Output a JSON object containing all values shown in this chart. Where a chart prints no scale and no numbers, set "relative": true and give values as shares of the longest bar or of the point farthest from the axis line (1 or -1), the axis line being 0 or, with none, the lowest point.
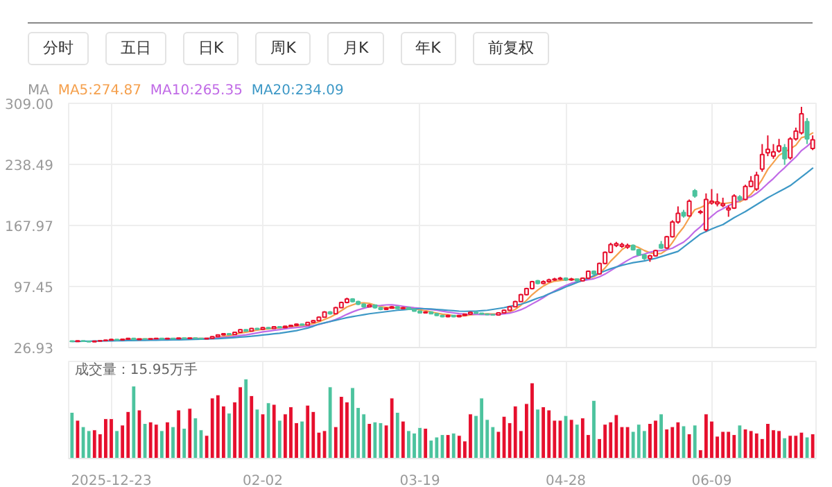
{
  "chart_data": [
    {
      "type": "other",
      "annotations": [
        "分时",
        "五日",
        "日K",
        "周K",
        "月K",
        "年K",
        "前复权"
      ]
    },
    {
      "type": "candlestick",
      "legend_title": "MA",
      "legend": "top left",
      "grid": true,
      "tick_labels": "y",
      "ylim": [
        26.93,
        309.0
      ],
      "yticks": [
        26.93,
        97.45,
        167.97,
        238.49,
        {
          "value": 309.0,
          "label": "309.00"
        }
      ],
      "categories": [
        null,
        null,
        null,
        null,
        null,
        null,
        null,
        null,
        null,
        null,
        null,
        null,
        null,
        null,
        null,
        null,
        null,
        null,
        null,
        null,
        null,
        null,
        null,
        null,
        null,
        null,
        null,
        null,
        null,
        null,
        null,
        null,
        null,
        null,
        null,
        null,
        null,
        null,
        null,
        null,
        null,
        null,
        null,
        null,
        null,
        null,
        null,
        null,
        null,
        null,
        null,
        null,
        null,
        null,
        null,
        null,
        null,
        null,
        null,
        null,
        null,
        null,
        null,
        null,
        null,
        null,
        null,
        null,
        null,
        null,
        null,
        null,
        null,
        null,
        null,
        null,
        null,
        null,
        null,
        null,
        null,
        null,
        null,
        null,
        null,
        null,
        null,
        null,
        null,
        null,
        null,
        null,
        null,
        null,
        null,
        null,
        null,
        null,
        null,
        null,
        null,
        null,
        null,
        null,
        null,
        null,
        null,
        null,
        null,
        null,
        null,
        null,
        null,
        null,
        null,
        null,
        null,
        null,
        null,
        null,
        null,
        null,
        null,
        null,
        null,
        null,
        null,
        null,
        null,
        null,
        null,
        null,
        null
      ],
      "ohlc": [
        [
          34.6,
          34.9,
          33.8,
          34.0
        ],
        [
          34.0,
          35.1,
          33.9,
          34.8
        ],
        [
          34.8,
          35.0,
          34.0,
          34.2
        ],
        [
          34.2,
          34.4,
          33.3,
          33.6
        ],
        [
          33.6,
          34.5,
          33.4,
          34.3
        ],
        [
          34.3,
          35.2,
          34.1,
          34.9
        ],
        [
          34.9,
          35.9,
          34.7,
          35.6
        ],
        [
          35.6,
          36.8,
          35.4,
          36.4
        ],
        [
          36.4,
          36.6,
          35.5,
          35.8
        ],
        [
          35.8,
          36.8,
          35.6,
          36.5
        ],
        [
          36.5,
          38.0,
          36.3,
          37.6
        ],
        [
          37.6,
          37.9,
          35.9,
          36.2
        ],
        [
          36.2,
          37.3,
          36.0,
          37.0
        ],
        [
          37.0,
          37.2,
          36.2,
          36.5
        ],
        [
          36.5,
          37.4,
          36.3,
          37.1
        ],
        [
          37.1,
          37.9,
          36.9,
          37.6
        ],
        [
          37.6,
          37.8,
          36.8,
          37.0
        ],
        [
          37.0,
          37.9,
          36.8,
          37.6
        ],
        [
          37.6,
          37.8,
          36.9,
          37.1
        ],
        [
          37.1,
          38.2,
          36.9,
          37.9
        ],
        [
          37.9,
          38.1,
          37.0,
          37.3
        ],
        [
          37.3,
          38.3,
          37.1,
          38.0
        ],
        [
          38.0,
          38.2,
          37.2,
          37.5
        ],
        [
          37.5,
          37.7,
          36.7,
          37.0
        ],
        [
          37.0,
          37.8,
          36.8,
          37.5
        ],
        [
          37.5,
          40.0,
          37.3,
          39.5
        ],
        [
          39.5,
          42.0,
          39.2,
          41.5
        ],
        [
          41.5,
          43.6,
          41.2,
          43.0
        ],
        [
          43.0,
          43.5,
          41.6,
          42.0
        ],
        [
          42.0,
          45.0,
          41.8,
          44.5
        ],
        [
          44.5,
          48.2,
          44.2,
          47.5
        ],
        [
          47.5,
          48.0,
          45.5,
          46.0
        ],
        [
          46.0,
          49.5,
          45.8,
          49.0
        ],
        [
          49.0,
          49.6,
          47.6,
          48.0
        ],
        [
          48.0,
          50.6,
          47.8,
          50.0
        ],
        [
          50.0,
          50.5,
          48.5,
          49.0
        ],
        [
          49.0,
          51.6,
          48.8,
          51.0
        ],
        [
          51.0,
          51.5,
          49.5,
          50.0
        ],
        [
          50.0,
          52.0,
          49.8,
          51.5
        ],
        [
          51.5,
          53.0,
          51.2,
          52.5
        ],
        [
          52.5,
          54.6,
          52.2,
          54.0
        ],
        [
          54.0,
          54.5,
          52.5,
          53.0
        ],
        [
          53.0,
          56.6,
          52.8,
          56.0
        ],
        [
          56.0,
          58.8,
          55.6,
          58.0
        ],
        [
          58.0,
          62.8,
          57.6,
          62.0
        ],
        [
          62.0,
          68.9,
          61.5,
          68.0
        ],
        [
          68.0,
          69.0,
          65.0,
          66.0
        ],
        [
          66.0,
          74.0,
          65.5,
          73.0
        ],
        [
          73.0,
          80.0,
          72.5,
          79.0
        ],
        [
          79.0,
          84.5,
          78.0,
          83.0
        ],
        [
          83.0,
          84.0,
          79.0,
          80.0
        ],
        [
          80.0,
          81.0,
          76.0,
          77.0
        ],
        [
          77.0,
          78.0,
          73.0,
          74.0
        ],
        [
          74.0,
          77.0,
          73.5,
          76.0
        ],
        [
          76.0,
          76.5,
          72.0,
          73.0
        ],
        [
          73.0,
          73.5,
          70.0,
          71.0
        ],
        [
          71.0,
          73.5,
          70.5,
          72.5
        ],
        [
          72.5,
          75.0,
          72.0,
          74.0
        ],
        [
          74.0,
          74.5,
          71.5,
          72.0
        ],
        [
          72.0,
          74.0,
          71.5,
          73.0
        ],
        [
          73.0,
          73.5,
          70.5,
          71.0
        ],
        [
          71.0,
          71.5,
          68.5,
          69.0
        ],
        [
          69.0,
          69.5,
          66.5,
          67.0
        ],
        [
          67.0,
          68.8,
          66.5,
          68.0
        ],
        [
          68.0,
          68.5,
          65.5,
          66.0
        ],
        [
          66.0,
          66.5,
          63.5,
          64.0
        ],
        [
          64.0,
          64.5,
          62.0,
          62.5
        ],
        [
          62.5,
          64.8,
          62.0,
          64.0
        ],
        [
          64.0,
          64.5,
          62.0,
          62.5
        ],
        [
          62.5,
          64.6,
          62.0,
          64.0
        ],
        [
          64.0,
          66.2,
          63.6,
          65.5
        ],
        [
          65.5,
          68.3,
          65.0,
          67.5
        ],
        [
          67.5,
          68.0,
          66.0,
          66.5
        ],
        [
          66.5,
          67.0,
          65.0,
          65.5
        ],
        [
          65.5,
          66.0,
          64.5,
          65.0
        ],
        [
          65.0,
          65.5,
          64.0,
          64.5
        ],
        [
          64.5,
          67.5,
          64.0,
          67.0
        ],
        [
          67.0,
          70.8,
          66.5,
          70.0
        ],
        [
          70.0,
          74.8,
          69.5,
          74.0
        ],
        [
          74.0,
          81.0,
          73.5,
          80.0
        ],
        [
          80.0,
          89.0,
          79.5,
          88.0
        ],
        [
          88.0,
          96.0,
          87.0,
          95.0
        ],
        [
          95.0,
          104.0,
          94.0,
          103.0
        ],
        [
          104.0,
          105.0,
          100.0,
          101.0
        ],
        [
          101.0,
          104.5,
          100.0,
          103.0
        ],
        [
          103.0,
          106.5,
          102.0,
          105.0
        ],
        [
          105.0,
          107.5,
          104.0,
          106.0
        ],
        [
          106.0,
          108.5,
          105.0,
          107.0
        ],
        [
          107.0,
          108.0,
          104.0,
          105.0
        ],
        [
          105.0,
          107.5,
          104.0,
          106.0
        ],
        [
          106.0,
          106.5,
          103.0,
          104.0
        ],
        [
          104.0,
          108.0,
          103.5,
          107.0
        ],
        [
          107.0,
          116.0,
          106.0,
          115.0
        ],
        [
          115.0,
          116.0,
          111.0,
          112.0
        ],
        [
          112.0,
          125.0,
          111.0,
          124.0
        ],
        [
          124.0,
          138.0,
          123.0,
          137.0
        ],
        [
          137.0,
          148.0,
          136.0,
          146.0
        ],
        [
          145.0,
          149.0,
          143.0,
          147.0
        ],
        [
          144.0,
          148.0,
          142.0,
          146.0
        ],
        [
          143.0,
          147.0,
          141.0,
          145.0
        ],
        [
          145.0,
          146.0,
          139.0,
          140.0
        ],
        [
          140.0,
          141.0,
          133.0,
          134.0
        ],
        [
          134.0,
          135.0,
          128.0,
          130.0
        ],
        [
          130.0,
          134.0,
          126.0,
          133.0
        ],
        [
          133.0,
          140.0,
          132.0,
          139.0
        ],
        [
          146.0,
          150.0,
          141.0,
          142.0
        ],
        [
          142.0,
          156.0,
          141.0,
          155.0
        ],
        [
          155.0,
          174.0,
          154.0,
          172.0
        ],
        [
          172.0,
          190.0,
          170.0,
          182.0
        ],
        [
          183.0,
          186.0,
          177.0,
          179.0
        ],
        [
          179.0,
          198.0,
          178.0,
          196.0
        ],
        [
          208.0,
          210.0,
          200.0,
          202.0
        ],
        [
          183.0,
          186.0,
          181.0,
          184.0
        ],
        [
          163.0,
          205.0,
          161.0,
          198.0
        ],
        [
          194.0,
          210.0,
          192.0,
          196.0
        ],
        [
          193.0,
          205.0,
          190.0,
          195.0
        ],
        [
          191.0,
          200.0,
          189.0,
          193.0
        ],
        [
          186.0,
          191.0,
          178.0,
          188.0
        ],
        [
          188.0,
          204.0,
          187.0,
          202.0
        ],
        [
          201.0,
          203.0,
          196.0,
          198.0
        ],
        [
          198.0,
          215.0,
          197.0,
          213.0
        ],
        [
          213.0,
          225.0,
          212.0,
          219.0
        ],
        [
          210.0,
          230.0,
          208.0,
          226.0
        ],
        [
          233.0,
          262.0,
          230.0,
          250.0
        ],
        [
          252.0,
          272.0,
          248.0,
          256.0
        ],
        [
          248.0,
          262.0,
          245.0,
          253.0
        ],
        [
          254.0,
          268.0,
          252.0,
          260.0
        ],
        [
          258.0,
          262.0,
          238.0,
          245.0
        ],
        [
          246.0,
          270.0,
          244.0,
          268.0
        ],
        [
          268.0,
          281.0,
          266.0,
          277.0
        ],
        [
          275.0,
          305.0,
          273.0,
          297.0
        ],
        [
          288.0,
          292.0,
          262.0,
          268.0
        ],
        [
          257.0,
          272.0,
          255.0,
          267.0
        ]
      ],
      "colors": [
        "#4cc39e",
        "#e60f2d",
        "#4cc39e",
        "#4cc39e",
        "#e60f2d",
        "#e60f2d",
        "#e60f2d",
        "#e60f2d",
        "#4cc39e",
        "#e60f2d",
        "#e60f2d",
        "#4cc39e",
        "#e60f2d",
        "#4cc39e",
        "#e60f2d",
        "#e60f2d",
        "#4cc39e",
        "#e60f2d",
        "#4cc39e",
        "#e60f2d",
        "#4cc39e",
        "#e60f2d",
        "#4cc39e",
        "#4cc39e",
        "#e60f2d",
        "#e60f2d",
        "#e60f2d",
        "#e60f2d",
        "#4cc39e",
        "#e60f2d",
        "#e60f2d",
        "#4cc39e",
        "#e60f2d",
        "#4cc39e",
        "#e60f2d",
        "#4cc39e",
        "#e60f2d",
        "#4cc39e",
        "#e60f2d",
        "#e60f2d",
        "#e60f2d",
        "#4cc39e",
        "#e60f2d",
        "#e60f2d",
        "#e60f2d",
        "#e60f2d",
        "#4cc39e",
        "#e60f2d",
        "#e60f2d",
        "#e60f2d",
        "#4cc39e",
        "#4cc39e",
        "#4cc39e",
        "#e60f2d",
        "#4cc39e",
        "#4cc39e",
        "#e60f2d",
        "#e60f2d",
        "#4cc39e",
        "#e60f2d",
        "#4cc39e",
        "#4cc39e",
        "#4cc39e",
        "#e60f2d",
        "#4cc39e",
        "#4cc39e",
        "#4cc39e",
        "#e60f2d",
        "#4cc39e",
        "#e60f2d",
        "#e60f2d",
        "#e60f2d",
        "#4cc39e",
        "#4cc39e",
        "#4cc39e",
        "#4cc39e",
        "#e60f2d",
        "#e60f2d",
        "#e60f2d",
        "#e60f2d",
        "#e60f2d",
        "#e60f2d",
        "#e60f2d",
        "#4cc39e",
        "#e60f2d",
        "#e60f2d",
        "#e60f2d",
        "#e60f2d",
        "#4cc39e",
        "#e60f2d",
        "#4cc39e",
        "#e60f2d",
        "#e60f2d",
        "#4cc39e",
        "#e60f2d",
        "#e60f2d",
        "#e60f2d",
        "#e60f2d",
        "#e60f2d",
        "#e60f2d",
        "#4cc39e",
        "#4cc39e",
        "#4cc39e",
        "#e60f2d",
        "#e60f2d",
        "#4cc39e",
        "#e60f2d",
        "#e60f2d",
        "#e60f2d",
        "#4cc39e",
        "#e60f2d",
        "#4cc39e",
        "#e60f2d",
        "#e60f2d",
        "#e60f2d",
        "#e60f2d",
        "#e60f2d",
        "#e60f2d",
        "#e60f2d",
        "#4cc39e",
        "#e60f2d",
        "#e60f2d",
        "#e60f2d",
        "#e60f2d",
        "#e60f2d",
        "#e60f2d",
        "#e60f2d",
        "#4cc39e",
        "#e60f2d",
        "#e60f2d",
        "#e60f2d",
        "#4cc39e",
        "#e60f2d"
      ],
      "series": [
        {
          "type": "line",
          "name": "MA5:274.87",
          "color": "#f5a04d",
          "values": [
            null,
            null,
            null,
            null,
            null,
            null,
            null,
            35.0,
            35.4,
            35.8,
            36.4,
            36.5,
            36.7,
            36.8,
            36.9,
            36.9,
            37.0,
            37.2,
            37.3,
            37.4,
            37.4,
            37.6,
            37.6,
            37.5,
            37.5,
            37.9,
            38.6,
            39.7,
            40.7,
            42.1,
            43.7,
            44.6,
            45.8,
            47.0,
            48.1,
            48.4,
            49.4,
            49.6,
            50.3,
            50.8,
            51.8,
            52.2,
            53.4,
            54.7,
            56.6,
            59.4,
            62.0,
            65.4,
            69.6,
            73.8,
            76.2,
            78.4,
            78.6,
            78.0,
            76.0,
            74.2,
            73.3,
            73.3,
            72.5,
            72.5,
            72.5,
            71.8,
            70.4,
            69.6,
            68.2,
            66.8,
            65.5,
            64.9,
            63.8,
            63.4,
            63.7,
            64.7,
            65.2,
            65.8,
            65.9,
            65.8,
            65.7,
            66.4,
            68.1,
            71.1,
            75.8,
            81.4,
            88.0,
            93.4,
            98.0,
            101.4,
            103.6,
            104.4,
            105.2,
            105.8,
            105.6,
            105.8,
            107.4,
            108.8,
            112.4,
            119.0,
            126.8,
            133.2,
            140.0,
            144.2,
            144.8,
            142.4,
            139.0,
            136.4,
            135.2,
            135.6,
            139.8,
            148.2,
            158.0,
            166.0,
            176.8,
            186.2,
            188.6,
            191.8,
            195.2,
            195.0,
            193.2,
            194.0,
            194.8,
            195.2,
            198.8,
            204.0,
            211.6,
            221.2,
            232.8,
            240.8,
            249.0,
            252.8,
            256.4,
            260.6,
            269.4,
            271.0,
            274.87
          ]
        },
        {
          "type": "line",
          "name": "MA10:265.35",
          "color": "#c06ae6",
          "values": [
            null,
            null,
            null,
            null,
            null,
            null,
            null,
            null,
            null,
            35.0,
            35.4,
            35.6,
            35.8,
            36.1,
            36.3,
            36.6,
            36.8,
            36.9,
            37.0,
            37.1,
            37.1,
            37.2,
            37.3,
            37.3,
            37.4,
            37.6,
            38.0,
            38.6,
            39.1,
            39.8,
            40.8,
            41.6,
            42.7,
            43.8,
            45.0,
            45.9,
            46.9,
            47.6,
            48.6,
            49.4,
            50.0,
            50.7,
            51.4,
            52.4,
            53.6,
            55.4,
            57.1,
            59.4,
            62.2,
            65.3,
            68.1,
            70.5,
            72.3,
            74.1,
            75.3,
            75.6,
            76.2,
            76.3,
            75.6,
            74.6,
            73.7,
            72.9,
            72.3,
            71.5,
            70.8,
            70.0,
            68.9,
            67.9,
            67.0,
            66.1,
            65.6,
            65.4,
            65.3,
            65.1,
            65.0,
            65.0,
            65.2,
            65.8,
            66.7,
            68.4,
            70.7,
            73.7,
            77.3,
            80.8,
            84.6,
            88.7,
            92.3,
            95.6,
            98.7,
            101.3,
            102.9,
            104.1,
            105.3,
            106.4,
            108.6,
            111.8,
            115.8,
            119.8,
            123.7,
            127.6,
            131.2,
            133.4,
            134.9,
            137.0,
            138.5,
            139.0,
            139.9,
            141.7,
            145.3,
            148.7,
            154.3,
            161.1,
            166.5,
            173.0,
            178.7,
            184.0,
            187.3,
            190.9,
            193.9,
            197.1,
            199.3,
            201.0,
            205.2,
            210.4,
            216.5,
            222.2,
            228.9,
            234.6,
            241.2,
            247.1,
            254.5,
            259.4,
            265.35
          ]
        },
        {
          "type": "line",
          "name": "MA20:234.09",
          "color": "#3d98c6",
          "values": [
            34.0,
            34.1,
            34.2,
            34.3,
            34.4,
            34.5,
            34.6,
            34.7,
            34.8,
            34.9,
            35.0,
            35.1,
            35.2,
            35.3,
            35.4,
            35.5,
            35.6,
            35.7,
            35.8,
            35.9,
            36.0,
            36.2,
            36.4,
            36.6,
            36.8,
            37.0,
            37.2,
            37.6,
            38.0,
            38.5,
            39.0,
            39.5,
            40.0,
            40.7,
            41.4,
            42.1,
            42.8,
            43.5,
            44.5,
            45.5,
            46.5,
            48.0,
            49.5,
            51.5,
            54.0,
            55.5,
            57.0,
            58.5,
            60.0,
            61.5,
            62.7,
            63.8,
            64.9,
            66.0,
            66.8,
            67.6,
            68.4,
            69.2,
            70.0,
            70.5,
            71.0,
            71.5,
            72.0,
            71.8,
            71.5,
            71.0,
            70.5,
            70.0,
            69.5,
            69.0,
            68.8,
            68.9,
            69.0,
            69.5,
            70.0,
            71.0,
            72.0,
            73.0,
            74.5,
            75.5,
            77.0,
            79.0,
            81.5,
            84.0,
            86.0,
            89.0,
            91.5,
            94.0,
            97.0,
            99.5,
            102.0,
            104.5,
            107.0,
            110.0,
            113.0,
            115.5,
            118.0,
            120.0,
            122.0,
            123.5,
            125.0,
            126.0,
            127.0,
            128.5,
            130.0,
            132.0,
            134.0,
            136.0,
            138.0,
            143.0,
            148.0,
            153.0,
            158.0,
            161.0,
            164.0,
            166.5,
            169.0,
            173.0,
            177.0,
            180.5,
            184.0,
            188.0,
            192.0,
            196.0,
            200.0,
            203.5,
            207.0,
            210.5,
            214.0,
            219.0,
            224.0,
            229.0,
            234.09
          ]
        }
      ]
    },
    {
      "type": "bar",
      "relative": true,
      "grid": "x",
      "tick_labels": "x",
      "annotations": [
        "成交量：15.95万手"
      ],
      "categories": [
        null,
        null,
        null,
        null,
        null,
        null,
        null,
        "2025-12-23",
        null,
        null,
        null,
        null,
        null,
        null,
        null,
        null,
        null,
        null,
        null,
        null,
        null,
        null,
        null,
        null,
        null,
        null,
        null,
        null,
        null,
        null,
        null,
        null,
        null,
        null,
        "02-02",
        null,
        null,
        null,
        null,
        null,
        null,
        null,
        null,
        null,
        null,
        null,
        null,
        null,
        null,
        null,
        null,
        null,
        null,
        null,
        null,
        null,
        null,
        null,
        null,
        null,
        null,
        null,
        "03-19",
        null,
        null,
        null,
        null,
        null,
        null,
        null,
        null,
        null,
        null,
        null,
        null,
        null,
        null,
        null,
        null,
        null,
        null,
        null,
        null,
        null,
        null,
        null,
        null,
        null,
        "04-28",
        null,
        null,
        null,
        null,
        null,
        null,
        null,
        null,
        null,
        null,
        null,
        null,
        null,
        null,
        null,
        null,
        null,
        null,
        null,
        null,
        null,
        null,
        null,
        null,
        null,
        "06-09",
        null,
        null,
        null,
        null,
        null,
        null,
        null,
        null,
        null,
        null,
        null,
        null,
        null,
        null,
        null,
        null,
        null,
        null
      ],
      "values": [
        0.58,
        0.48,
        0.4,
        0.35,
        0.36,
        0.31,
        0.5,
        0.5,
        0.35,
        0.42,
        0.59,
        0.91,
        0.61,
        0.44,
        0.46,
        0.43,
        0.35,
        0.46,
        0.4,
        0.61,
        0.38,
        0.63,
        0.51,
        0.36,
        0.29,
        0.76,
        0.8,
        0.66,
        0.57,
        0.71,
        0.9,
        1.0,
        0.79,
        0.62,
        0.56,
        0.7,
        0.68,
        0.48,
        0.56,
        0.65,
        0.45,
        0.47,
        0.67,
        0.59,
        0.33,
        0.35,
        0.9,
        0.4,
        0.78,
        0.71,
        0.89,
        0.64,
        0.56,
        0.44,
        0.46,
        0.45,
        0.42,
        0.76,
        0.58,
        0.47,
        0.35,
        0.32,
        0.39,
        0.38,
        0.23,
        0.27,
        0.3,
        0.3,
        0.32,
        0.29,
        0.22,
        0.56,
        0.54,
        0.76,
        0.49,
        0.4,
        0.34,
        0.53,
        0.45,
        0.66,
        0.35,
        0.69,
        0.95,
        0.62,
        0.65,
        0.61,
        0.48,
        0.48,
        0.54,
        0.49,
        0.43,
        0.51,
        0.3,
        0.73,
        0.25,
        0.43,
        0.46,
        0.55,
        0.4,
        0.4,
        0.34,
        0.43,
        0.35,
        0.44,
        0.48,
        0.56,
        0.37,
        0.4,
        0.46,
        0.41,
        0.31,
        0.42,
        0.11,
        0.56,
        0.47,
        0.28,
        0.34,
        0.34,
        0.3,
        0.42,
        0.37,
        0.35,
        0.32,
        0.25,
        0.44,
        0.36,
        0.35,
        0.26,
        0.29,
        0.29,
        0.33,
        0.27,
        0.31
      ],
      "colors": [
        "#4cc39e",
        "#e60f2d",
        "#4cc39e",
        "#4cc39e",
        "#e60f2d",
        "#e60f2d",
        "#e60f2d",
        "#e60f2d",
        "#4cc39e",
        "#e60f2d",
        "#e60f2d",
        "#4cc39e",
        "#e60f2d",
        "#4cc39e",
        "#e60f2d",
        "#e60f2d",
        "#4cc39e",
        "#e60f2d",
        "#4cc39e",
        "#e60f2d",
        "#4cc39e",
        "#e60f2d",
        "#4cc39e",
        "#4cc39e",
        "#e60f2d",
        "#e60f2d",
        "#e60f2d",
        "#e60f2d",
        "#4cc39e",
        "#e60f2d",
        "#e60f2d",
        "#4cc39e",
        "#e60f2d",
        "#4cc39e",
        "#e60f2d",
        "#4cc39e",
        "#e60f2d",
        "#4cc39e",
        "#e60f2d",
        "#e60f2d",
        "#e60f2d",
        "#4cc39e",
        "#e60f2d",
        "#e60f2d",
        "#e60f2d",
        "#e60f2d",
        "#4cc39e",
        "#e60f2d",
        "#e60f2d",
        "#e60f2d",
        "#4cc39e",
        "#4cc39e",
        "#4cc39e",
        "#e60f2d",
        "#4cc39e",
        "#4cc39e",
        "#e60f2d",
        "#e60f2d",
        "#4cc39e",
        "#e60f2d",
        "#4cc39e",
        "#4cc39e",
        "#4cc39e",
        "#e60f2d",
        "#4cc39e",
        "#4cc39e",
        "#4cc39e",
        "#e60f2d",
        "#4cc39e",
        "#e60f2d",
        "#e60f2d",
        "#e60f2d",
        "#4cc39e",
        "#4cc39e",
        "#4cc39e",
        "#4cc39e",
        "#e60f2d",
        "#e60f2d",
        "#e60f2d",
        "#e60f2d",
        "#e60f2d",
        "#e60f2d",
        "#e60f2d",
        "#4cc39e",
        "#e60f2d",
        "#e60f2d",
        "#e60f2d",
        "#e60f2d",
        "#4cc39e",
        "#e60f2d",
        "#4cc39e",
        "#e60f2d",
        "#e60f2d",
        "#4cc39e",
        "#e60f2d",
        "#e60f2d",
        "#e60f2d",
        "#e60f2d",
        "#e60f2d",
        "#e60f2d",
        "#4cc39e",
        "#4cc39e",
        "#4cc39e",
        "#e60f2d",
        "#e60f2d",
        "#4cc39e",
        "#e60f2d",
        "#e60f2d",
        "#e60f2d",
        "#4cc39e",
        "#e60f2d",
        "#4cc39e",
        "#e60f2d",
        "#e60f2d",
        "#e60f2d",
        "#e60f2d",
        "#e60f2d",
        "#e60f2d",
        "#e60f2d",
        "#4cc39e",
        "#e60f2d",
        "#e60f2d",
        "#e60f2d",
        "#e60f2d",
        "#e60f2d",
        "#e60f2d",
        "#e60f2d",
        "#4cc39e",
        "#e60f2d",
        "#e60f2d",
        "#e60f2d",
        "#4cc39e",
        "#e60f2d"
      ]
    }
  ]
}
